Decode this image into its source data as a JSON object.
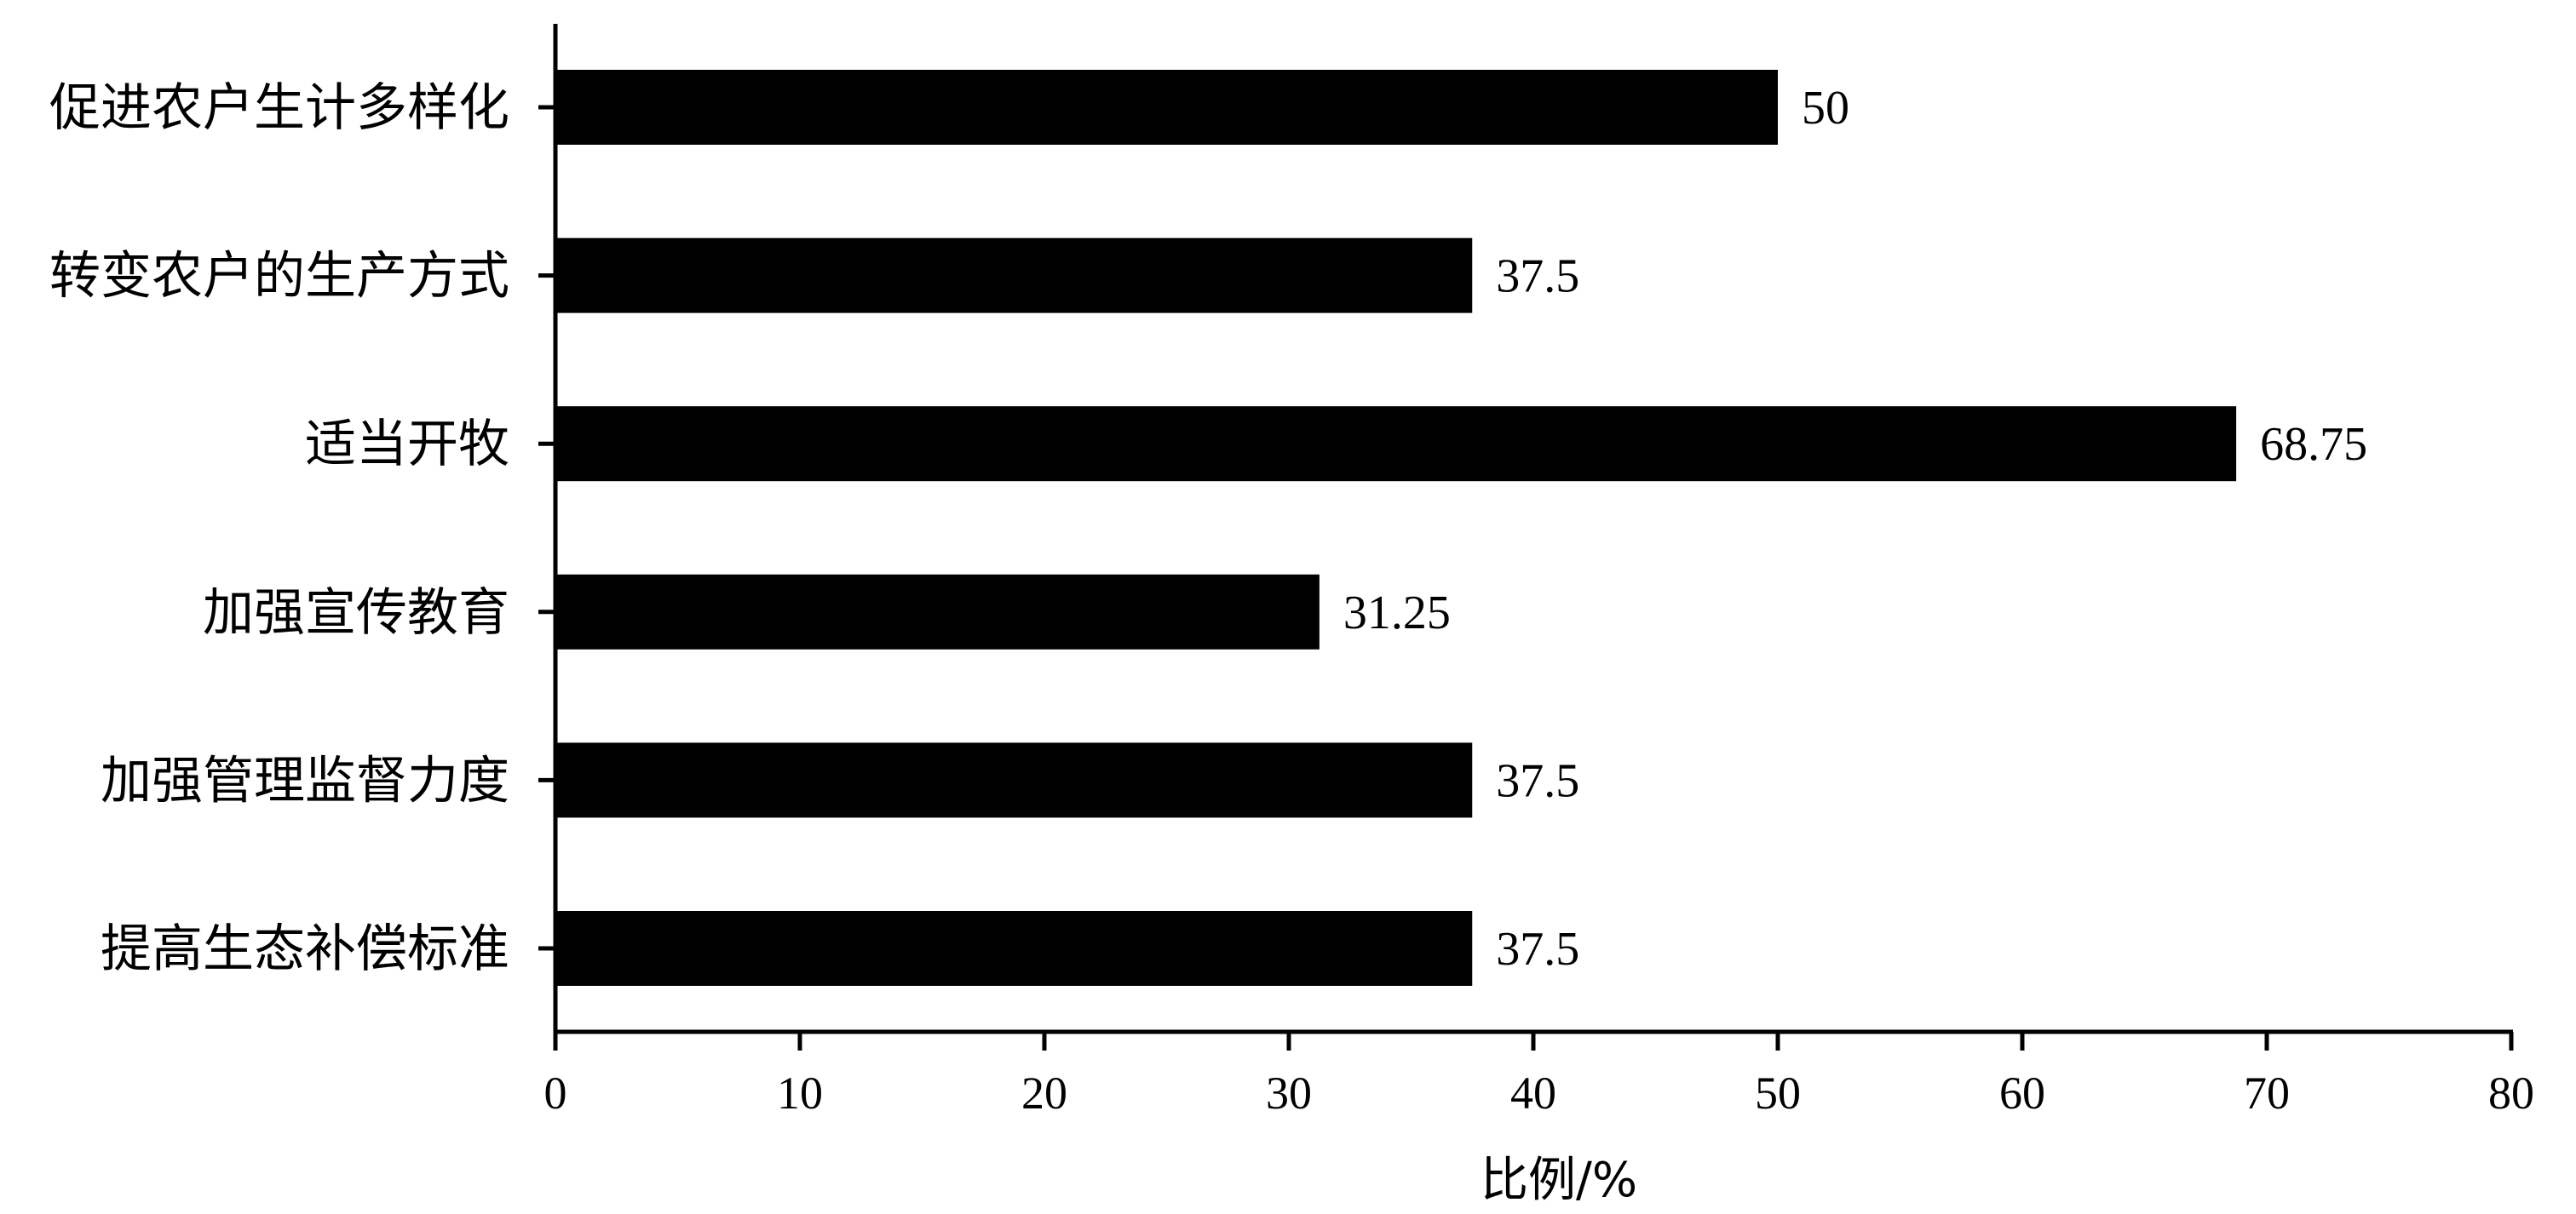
{
  "chart_data": {
    "type": "bar",
    "orientation": "horizontal",
    "categories": [
      "促进农户生计多样化",
      "转变农户的生产方式",
      "适当开牧",
      "加强宣传教育",
      "加强管理监督力度",
      "提高生态补偿标准"
    ],
    "values": [
      50,
      37.5,
      68.75,
      31.25,
      37.5,
      37.5
    ],
    "value_labels": [
      "50",
      "37.5",
      "68.75",
      "31.25",
      "37.5",
      "37.5"
    ],
    "xlabel": "比例/%",
    "ylabel": "",
    "title": "",
    "xlim": [
      0,
      80
    ],
    "x_ticks": [
      0,
      10,
      20,
      30,
      40,
      50,
      60,
      70,
      80
    ],
    "grid": false,
    "legend": "none",
    "bar_color": "#000000"
  }
}
